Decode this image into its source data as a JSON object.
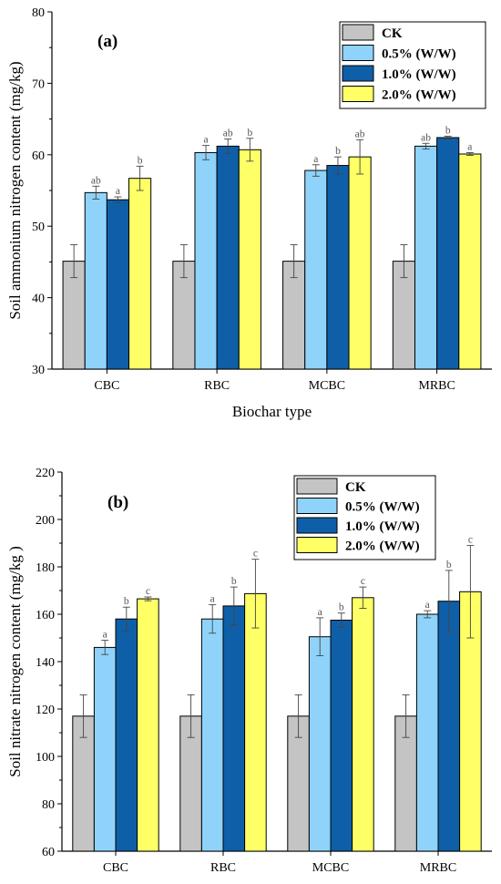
{
  "colors": {
    "CK": "#c4c4c4",
    "0.5% (W/W)": "#8fd3fb",
    "1.0% (W/W)": "#0f5fa8",
    "2.0% (W/W)": "#ffff66"
  },
  "chart_data": [
    {
      "type": "bar",
      "panel_label": "(a)",
      "xlabel": "Biochar type",
      "ylabel": "Soil ammonium nitrogen content (mg/kg)",
      "ylim": [
        30,
        80
      ],
      "yticks": [
        30,
        40,
        50,
        60,
        70,
        80
      ],
      "categories": [
        "CBC",
        "RBC",
        "MCBC",
        "MRBC"
      ],
      "legend_position": "top-right",
      "series": [
        {
          "name": "CK",
          "values": [
            45.1,
            45.1,
            45.1,
            45.1
          ],
          "errors": [
            2.3,
            2.3,
            2.3,
            2.3
          ],
          "labels": [
            "",
            "",
            "",
            ""
          ]
        },
        {
          "name": "0.5% (W/W)",
          "values": [
            54.7,
            60.3,
            57.8,
            61.2
          ],
          "errors": [
            0.9,
            1.0,
            0.8,
            0.4
          ],
          "labels": [
            "ab",
            "a",
            "a",
            "ab"
          ]
        },
        {
          "name": "1.0% (W/W)",
          "values": [
            53.7,
            61.2,
            58.5,
            62.4
          ],
          "errors": [
            0.4,
            1.0,
            1.2,
            0.2
          ],
          "labels": [
            "a",
            "ab",
            "b",
            "b"
          ]
        },
        {
          "name": "2.0% (W/W)",
          "values": [
            56.7,
            60.7,
            59.7,
            60.1
          ],
          "errors": [
            1.7,
            1.6,
            2.4,
            0.2
          ],
          "labels": [
            "b",
            "b",
            "ab",
            "a"
          ]
        }
      ]
    },
    {
      "type": "bar",
      "panel_label": "(b)",
      "xlabel": "Biochar type",
      "ylabel": "Soil nitrate nitrogen content (mg/kg )",
      "ylim": [
        60,
        220
      ],
      "yticks": [
        60,
        80,
        100,
        120,
        140,
        160,
        180,
        200,
        220
      ],
      "categories": [
        "CBC",
        "RBC",
        "MCBC",
        "MRBC"
      ],
      "legend_position": "top-right",
      "series": [
        {
          "name": "CK",
          "values": [
            117.0,
            117.0,
            117.0,
            117.0
          ],
          "errors": [
            9.0,
            9.0,
            9.0,
            9.0
          ],
          "labels": [
            "",
            "",
            "",
            ""
          ]
        },
        {
          "name": "0.5% (W/W)",
          "values": [
            146.0,
            158.0,
            150.5,
            160.0
          ],
          "errors": [
            3.0,
            6.0,
            8.0,
            1.5
          ],
          "labels": [
            "a",
            "a",
            "a",
            "a"
          ]
        },
        {
          "name": "1.0% (W/W)",
          "values": [
            158.0,
            163.5,
            157.5,
            165.5
          ],
          "errors": [
            5.0,
            8.0,
            3.0,
            13.0
          ],
          "labels": [
            "b",
            "b",
            "b",
            "b"
          ]
        },
        {
          "name": "2.0% (W/W)",
          "values": [
            166.5,
            168.7,
            167.0,
            169.5
          ],
          "errors": [
            0.8,
            14.5,
            4.5,
            19.5
          ],
          "labels": [
            "c",
            "c",
            "c",
            "c"
          ]
        }
      ]
    }
  ]
}
